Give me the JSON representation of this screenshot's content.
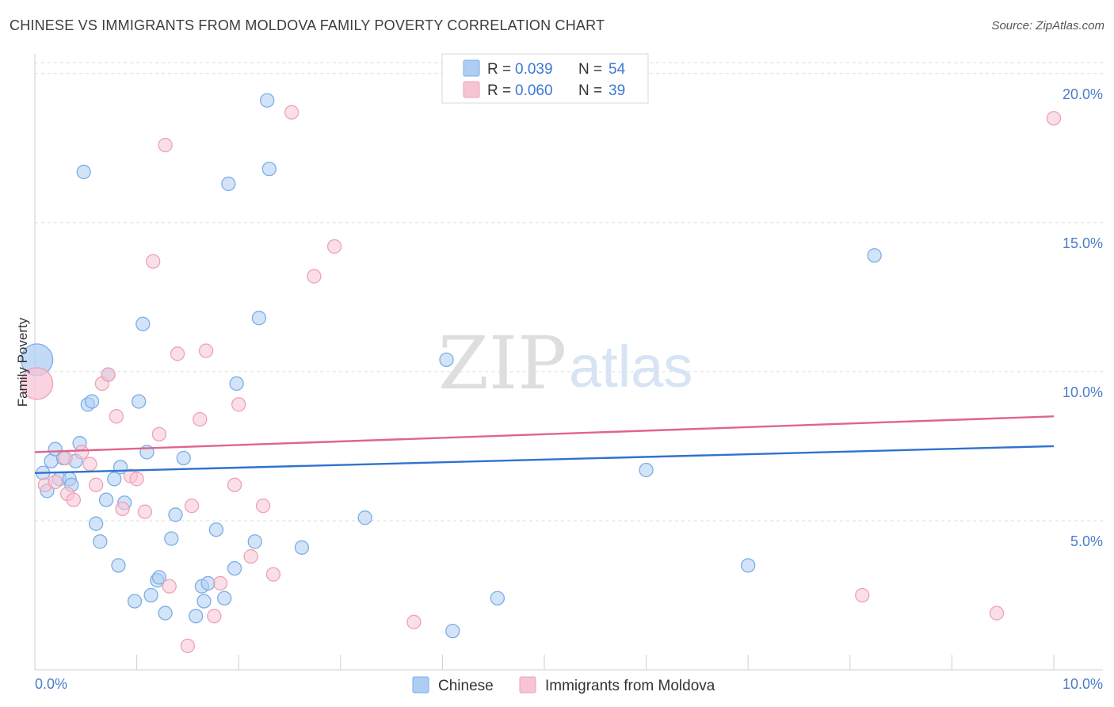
{
  "chart_data": {
    "type": "scatter",
    "title": "CHINESE VS IMMIGRANTS FROM MOLDOVA FAMILY POVERTY CORRELATION CHART",
    "source": "Source: ZipAtlas.com",
    "xlabel": "",
    "ylabel": "Family Poverty",
    "xlim": [
      0,
      10
    ],
    "ylim": [
      0,
      20.5
    ],
    "x_tick_labels": [
      "0.0%",
      "10.0%"
    ],
    "y_ticks": [
      5,
      10,
      15,
      20
    ],
    "y_tick_labels": [
      "5.0%",
      "10.0%",
      "15.0%",
      "20.0%"
    ],
    "watermark": {
      "zip": "ZIP",
      "atlas": "atlas"
    },
    "legend": [
      {
        "r_label": "R =",
        "r_value": "0.039",
        "n_label": "N =",
        "n_value": "54"
      },
      {
        "r_label": "R =",
        "r_value": "0.060",
        "n_label": "N =",
        "n_value": "39"
      }
    ],
    "series": [
      {
        "name": "Chinese",
        "color": "#7aaee8",
        "fill": "#aecdf3",
        "line_color": "#2f72cf",
        "trend": [
          [
            0,
            6.6
          ],
          [
            10,
            7.5
          ]
        ],
        "points": [
          [
            0.02,
            10.4,
            "large"
          ],
          [
            0.08,
            6.6
          ],
          [
            0.12,
            6.0
          ],
          [
            0.16,
            7.0
          ],
          [
            0.2,
            7.4
          ],
          [
            0.24,
            6.4
          ],
          [
            0.28,
            7.1
          ],
          [
            0.34,
            6.4
          ],
          [
            0.36,
            6.2
          ],
          [
            0.4,
            7.0
          ],
          [
            0.44,
            7.6
          ],
          [
            0.48,
            16.7
          ],
          [
            0.52,
            8.9
          ],
          [
            0.56,
            9.0
          ],
          [
            0.6,
            4.9
          ],
          [
            0.64,
            4.3
          ],
          [
            0.7,
            5.7
          ],
          [
            0.72,
            9.9
          ],
          [
            0.78,
            6.4
          ],
          [
            0.82,
            3.5
          ],
          [
            0.84,
            6.8
          ],
          [
            0.88,
            5.6
          ],
          [
            0.98,
            2.3
          ],
          [
            1.02,
            9.0
          ],
          [
            1.06,
            11.6
          ],
          [
            1.1,
            7.3
          ],
          [
            1.14,
            2.5
          ],
          [
            1.2,
            3.0
          ],
          [
            1.22,
            3.1
          ],
          [
            1.28,
            1.9
          ],
          [
            1.34,
            4.4
          ],
          [
            1.38,
            5.2
          ],
          [
            1.46,
            7.1
          ],
          [
            1.58,
            1.8
          ],
          [
            1.64,
            2.8
          ],
          [
            1.66,
            2.3
          ],
          [
            1.7,
            2.9
          ],
          [
            1.78,
            4.7
          ],
          [
            1.86,
            2.4
          ],
          [
            1.9,
            16.3
          ],
          [
            1.96,
            3.4
          ],
          [
            1.98,
            9.6
          ],
          [
            2.16,
            4.3
          ],
          [
            2.2,
            11.8
          ],
          [
            2.28,
            19.1
          ],
          [
            2.3,
            16.8
          ],
          [
            2.62,
            4.1
          ],
          [
            3.24,
            5.1
          ],
          [
            4.04,
            10.4
          ],
          [
            4.1,
            1.3
          ],
          [
            4.54,
            2.4
          ],
          [
            6.0,
            6.7
          ],
          [
            7.0,
            3.5
          ],
          [
            8.24,
            13.9
          ]
        ]
      },
      {
        "name": "Immigrants from Moldova",
        "color": "#f0a0b8",
        "fill": "#f7c4d4",
        "line_color": "#e0648c",
        "trend": [
          [
            0,
            7.3
          ],
          [
            10,
            8.5
          ]
        ],
        "points": [
          [
            0.02,
            9.6,
            "large"
          ],
          [
            0.1,
            6.2
          ],
          [
            0.2,
            6.3
          ],
          [
            0.3,
            7.1
          ],
          [
            0.32,
            5.9
          ],
          [
            0.38,
            5.7
          ],
          [
            0.46,
            7.3
          ],
          [
            0.54,
            6.9
          ],
          [
            0.6,
            6.2
          ],
          [
            0.66,
            9.6
          ],
          [
            0.72,
            9.9
          ],
          [
            0.8,
            8.5
          ],
          [
            0.86,
            5.4
          ],
          [
            0.94,
            6.5
          ],
          [
            1.0,
            6.4
          ],
          [
            1.08,
            5.3
          ],
          [
            1.16,
            13.7
          ],
          [
            1.22,
            7.9
          ],
          [
            1.28,
            17.6
          ],
          [
            1.32,
            2.8
          ],
          [
            1.4,
            10.6
          ],
          [
            1.5,
            0.8
          ],
          [
            1.54,
            5.5
          ],
          [
            1.62,
            8.4
          ],
          [
            1.68,
            10.7
          ],
          [
            1.76,
            1.8
          ],
          [
            1.82,
            2.9
          ],
          [
            1.96,
            6.2
          ],
          [
            2.0,
            8.9
          ],
          [
            2.12,
            3.8
          ],
          [
            2.24,
            5.5
          ],
          [
            2.34,
            3.2
          ],
          [
            2.52,
            18.7
          ],
          [
            2.74,
            13.2
          ],
          [
            2.94,
            14.2
          ],
          [
            3.72,
            1.6
          ],
          [
            8.12,
            2.5
          ],
          [
            9.44,
            1.9
          ],
          [
            10.0,
            18.5
          ]
        ]
      }
    ]
  }
}
